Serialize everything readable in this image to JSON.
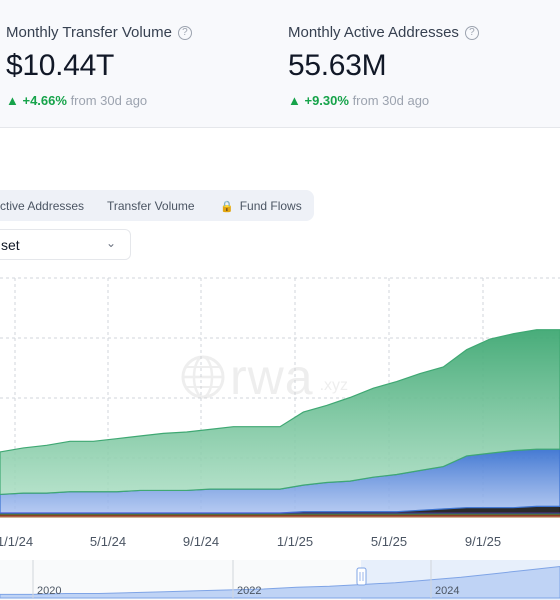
{
  "metrics": [
    {
      "label": "Monthly Transfer Volume",
      "value": "$10.44T",
      "change": "▲ +4.66%",
      "period": "from 30d ago"
    },
    {
      "label": "Monthly Active Addresses",
      "value": "55.63M",
      "change": "▲ +9.30%",
      "period": "from 30d ago"
    }
  ],
  "tabs": [
    "ctive Addresses",
    "Transfer Volume",
    "Fund Flows"
  ],
  "dropdown": {
    "value": "set"
  },
  "watermark": {
    "brand": "rwa",
    "suffix": ".xyz"
  },
  "colors": {
    "accent_green": "#16a34a",
    "series_green": "#3fa873",
    "series_blue": "#3b73d1"
  },
  "chart_data": {
    "type": "area",
    "x_ticks": [
      "1/1/24",
      "5/1/24",
      "9/1/24",
      "1/1/25",
      "5/1/25",
      "9/1/25"
    ],
    "navigator_years": [
      "2020",
      "2022",
      "2024"
    ],
    "grid": true,
    "stacked": true,
    "series": [
      {
        "values": [
          1,
          1,
          1,
          1,
          1,
          1,
          1,
          1,
          1,
          1,
          1,
          1,
          1,
          1,
          1,
          1,
          1,
          1,
          1,
          1,
          1,
          1,
          1,
          1,
          1
        ]
      },
      {
        "values": [
          2,
          2,
          2,
          2,
          2,
          2,
          2,
          2,
          2,
          2,
          2,
          2,
          2,
          3,
          3,
          3,
          3,
          3,
          4,
          5,
          6,
          6,
          6,
          7,
          7
        ]
      },
      {
        "values": [
          14,
          15,
          15,
          16,
          16,
          16,
          17,
          17,
          17,
          18,
          18,
          18,
          18,
          20,
          22,
          23,
          26,
          28,
          30,
          32,
          39,
          41,
          43,
          43,
          43
        ]
      },
      {
        "values": [
          32,
          34,
          36,
          38,
          38,
          40,
          41,
          43,
          44,
          45,
          47,
          47,
          47,
          55,
          58,
          63,
          67,
          70,
          73,
          75,
          80,
          86,
          88,
          90,
          90
        ]
      }
    ],
    "series_colors": [
      "#b38b59",
      "#1f1f1f",
      "#3b73d1",
      "#3fa873"
    ],
    "ylim": [
      0,
      180
    ],
    "navigator_values": [
      4,
      4,
      5,
      5,
      6,
      7,
      8,
      9,
      10,
      12,
      13,
      15,
      17,
      20,
      23,
      27,
      31,
      35
    ]
  }
}
